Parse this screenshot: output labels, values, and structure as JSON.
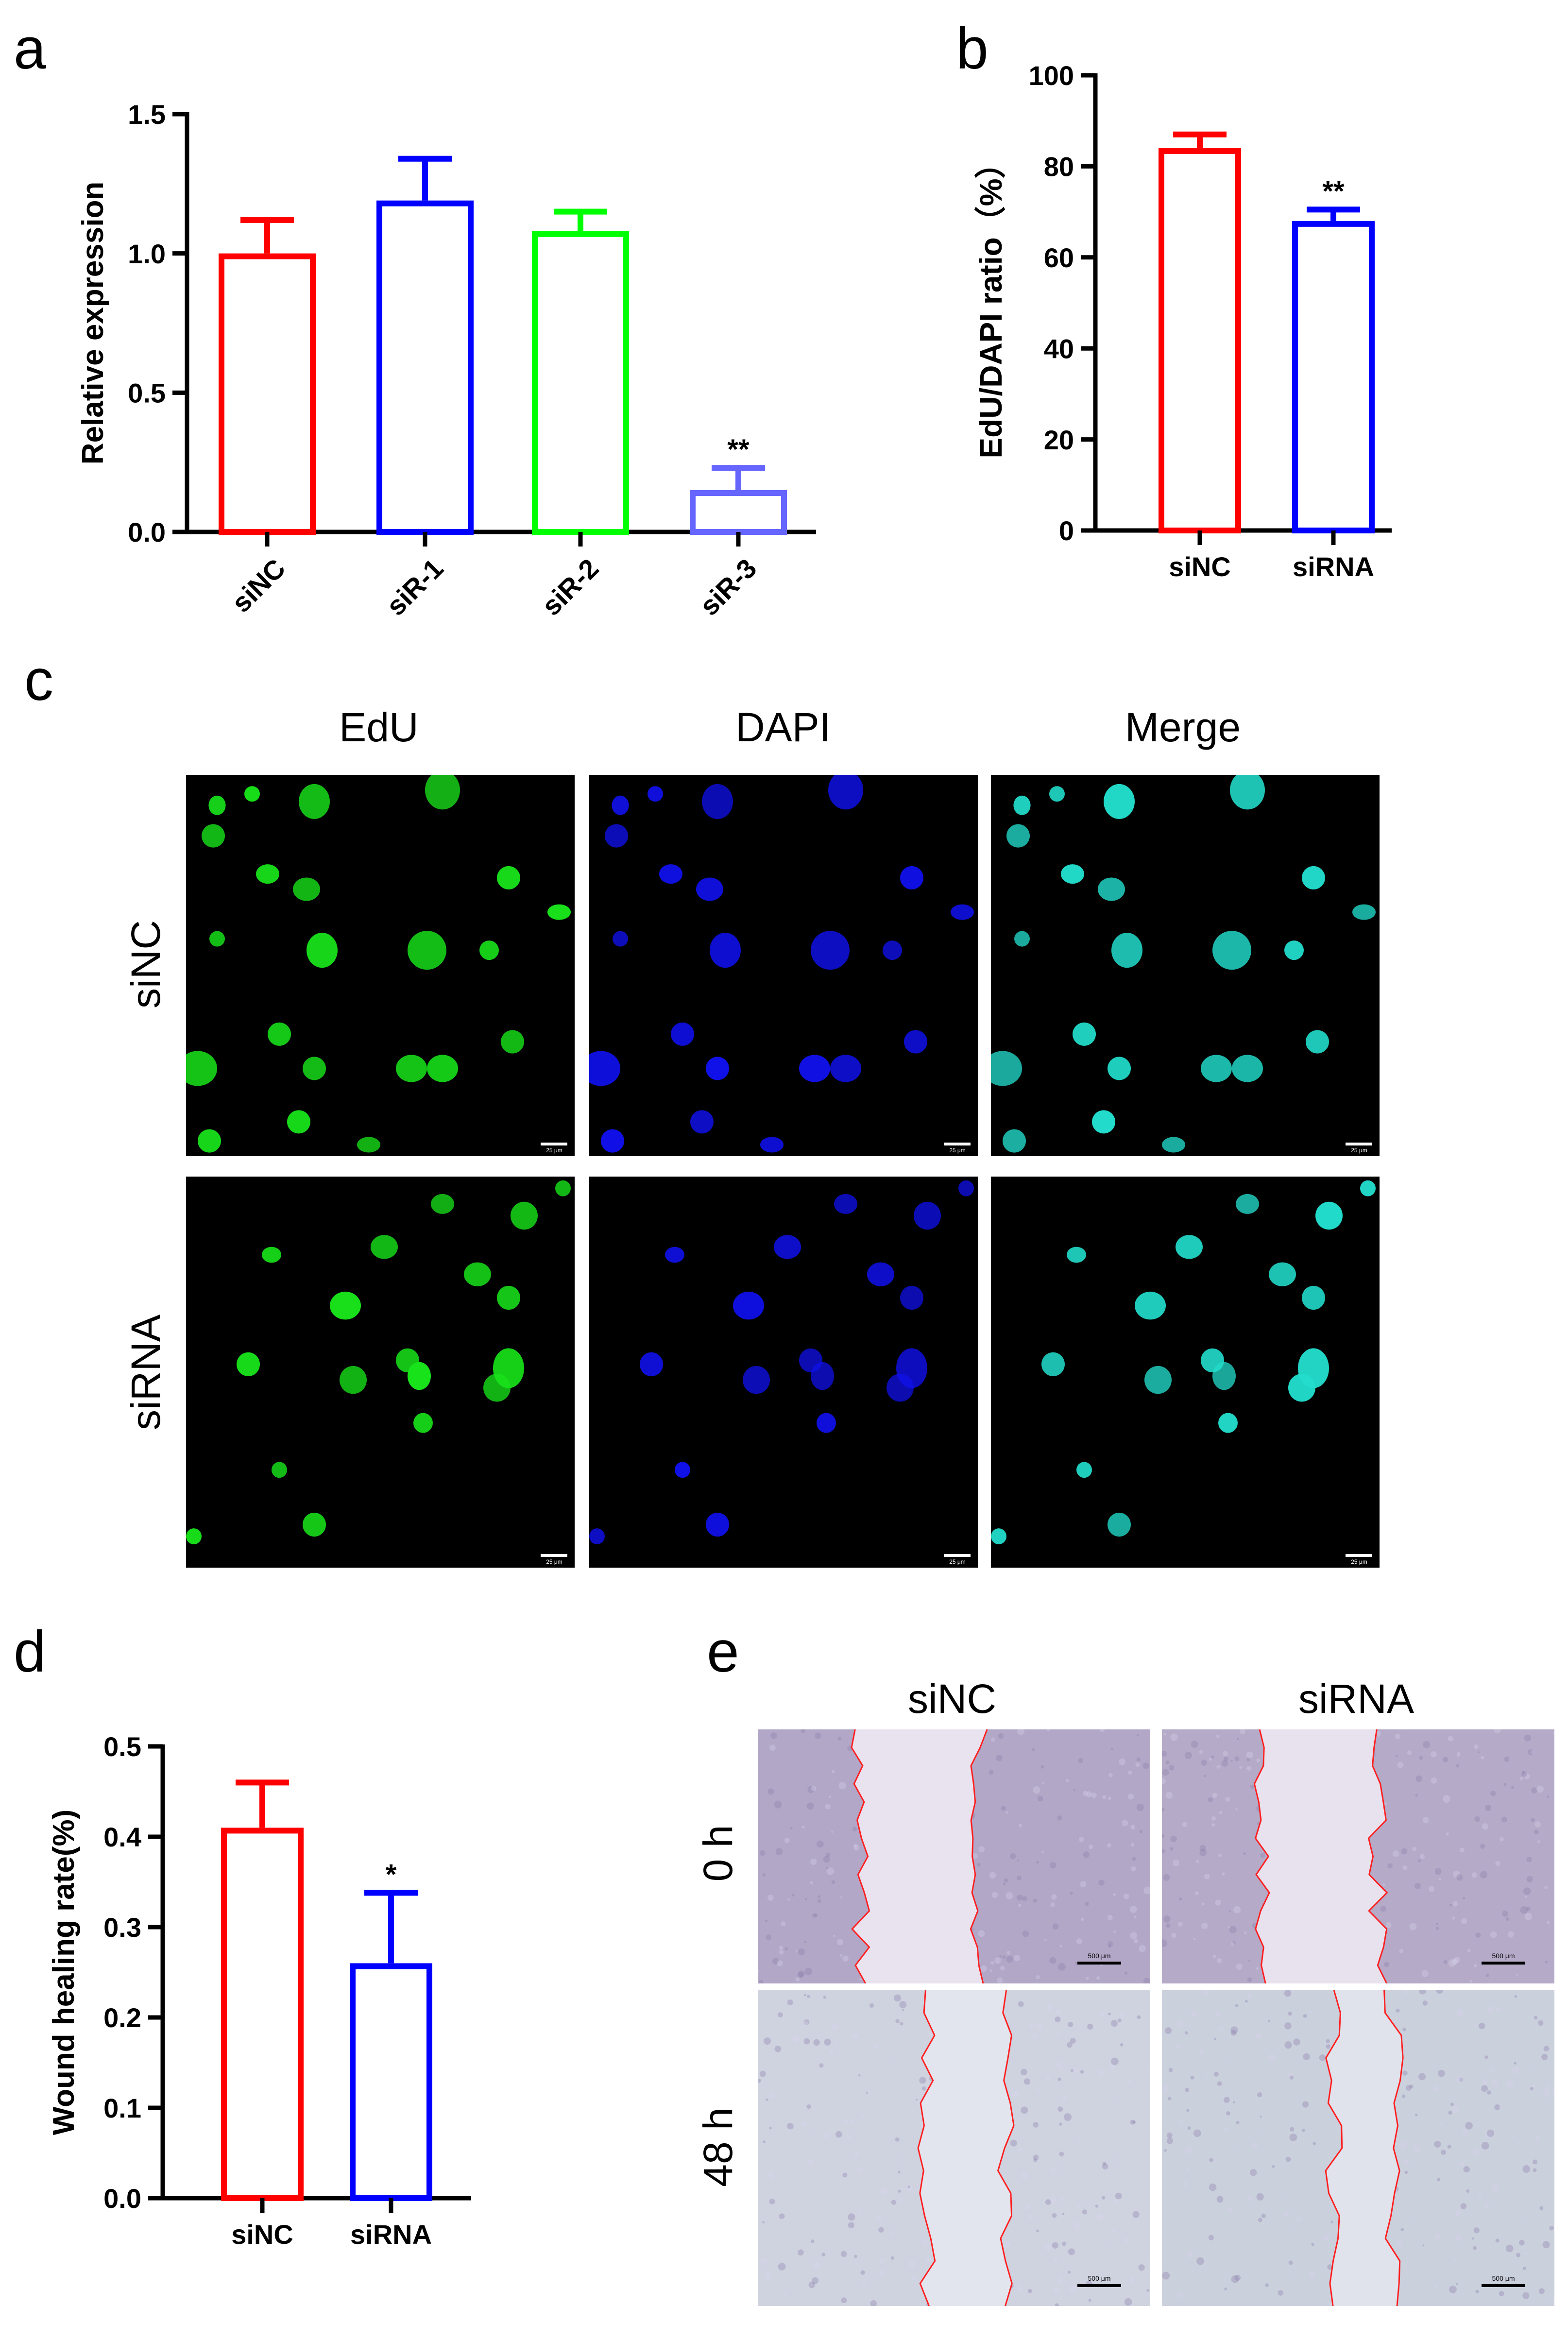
{
  "panel_letters": {
    "a": "a",
    "b": "b",
    "c": "c",
    "d": "d",
    "e": "e"
  },
  "chart_data": [
    {
      "panel": "a",
      "type": "bar",
      "ylabel": "Relative expression",
      "categories": [
        "siNC",
        "siR-1",
        "siR-2",
        "siR-3"
      ],
      "values": [
        1.0,
        1.19,
        1.08,
        0.15
      ],
      "errors": [
        0.12,
        0.15,
        0.07,
        0.08
      ],
      "colors": [
        "#ff0000",
        "#0000ff",
        "#00ff00",
        "#6666ff"
      ],
      "significance": [
        "",
        "",
        "",
        "**"
      ],
      "ylim": [
        0,
        1.5
      ],
      "yticks": [
        "0.0",
        "0.5",
        "1.0",
        "1.5"
      ]
    },
    {
      "panel": "b",
      "type": "bar",
      "ylabel": "EdU/DAPI ratio（%）",
      "categories": [
        "siNC",
        "siRNA"
      ],
      "values": [
        84,
        68
      ],
      "errors": [
        3,
        2.5
      ],
      "colors": [
        "#ff0000",
        "#0000ff"
      ],
      "significance": [
        "",
        "**"
      ],
      "ylim": [
        0,
        100
      ],
      "yticks": [
        "0",
        "20",
        "40",
        "60",
        "80",
        "100"
      ]
    },
    {
      "panel": "d",
      "type": "bar",
      "ylabel": "Wound healing rate(%)",
      "categories": [
        "siNC",
        "siRNA"
      ],
      "values": [
        0.41,
        0.26
      ],
      "errors": [
        0.05,
        0.078
      ],
      "colors": [
        "#ff0000",
        "#0000ff"
      ],
      "significance": [
        "",
        "*"
      ],
      "ylim": [
        0,
        0.5
      ],
      "yticks": [
        "0.0",
        "0.1",
        "0.2",
        "0.3",
        "0.4",
        "0.5"
      ]
    }
  ],
  "panel_c": {
    "columns": [
      "EdU",
      "DAPI",
      "Merge"
    ],
    "rows": [
      "siNC",
      "siRNA"
    ],
    "scale_text": "25 μm",
    "channel_colors": {
      "edu": "#18e21a",
      "dapi": "#1010e8",
      "merge": "#22ddcc"
    }
  },
  "panel_e": {
    "columns": [
      "siNC",
      "siRNA"
    ],
    "rows": [
      "0 h",
      "48 h"
    ],
    "scale_text": "500 μm"
  }
}
